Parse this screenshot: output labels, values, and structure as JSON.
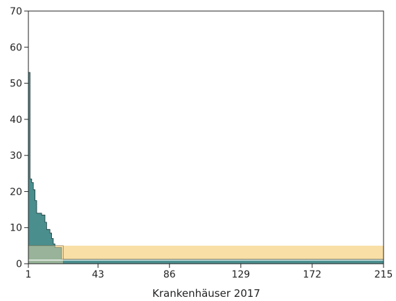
{
  "chart_data": {
    "type": "area",
    "title": "",
    "xlabel": "Krankenhäuser 2017",
    "ylabel": "",
    "xlim": [
      1,
      215
    ],
    "ylim": [
      0,
      70
    ],
    "x_ticks": [
      1,
      43,
      86,
      129,
      172,
      215
    ],
    "x_tick_labels": [
      "1",
      "43",
      "86",
      "129",
      "172",
      "215"
    ],
    "y_ticks": [
      0,
      10,
      20,
      30,
      40,
      50,
      60,
      70
    ],
    "y_tick_labels": [
      "0",
      "10",
      "20",
      "30",
      "40",
      "50",
      "60",
      "70"
    ],
    "grid": false,
    "legend": "none",
    "bands": [
      {
        "y_from": 0,
        "y_to": 5,
        "color": "#f9dfa6"
      }
    ],
    "reference_lines": [
      {
        "y": 1,
        "color": "#ffffff"
      }
    ],
    "series": [
      {
        "type": "step",
        "color": "#4a8e8e",
        "x": [
          1,
          2,
          3,
          4,
          5,
          6,
          7,
          8,
          9,
          10,
          11,
          12,
          13,
          14,
          15,
          16,
          17,
          18,
          19,
          20,
          21,
          22,
          215
        ],
        "values": [
          53,
          23.5,
          22.5,
          20.5,
          17.5,
          14,
          14,
          14,
          13.5,
          13.5,
          11.5,
          9.5,
          9.5,
          8.5,
          7,
          5.5,
          4.5,
          4.5,
          4.5,
          4.5,
          1.2,
          1.2,
          1.2
        ]
      }
    ]
  }
}
